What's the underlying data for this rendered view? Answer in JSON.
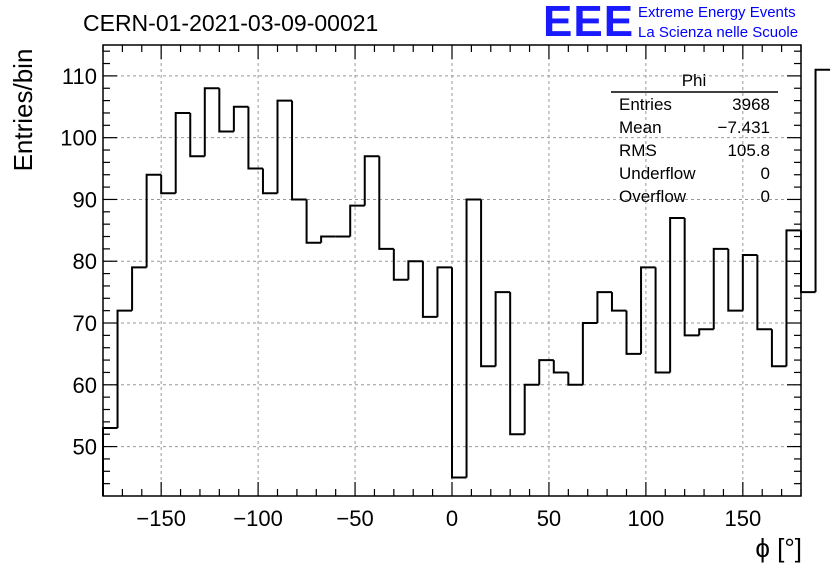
{
  "header": {
    "title": "CERN-01-2021-03-09-00021",
    "logo_text": "EEE",
    "logo_line1": "Extreme Energy Events",
    "logo_line2": "La Scienza nelle Scuole",
    "logo_color": "#1a1aff"
  },
  "stats_box": {
    "name": "Phi",
    "rows": [
      {
        "label": "Entries",
        "value": "3968"
      },
      {
        "label": "Mean",
        "value": "−7.431"
      },
      {
        "label": "RMS",
        "value": "105.8"
      },
      {
        "label": "Underflow",
        "value": "0"
      },
      {
        "label": "Overflow",
        "value": "0"
      }
    ]
  },
  "chart_data": {
    "type": "histogram",
    "xlabel": "ϕ [°]",
    "ylabel": "Entries/bin",
    "xlim": [
      -180,
      180
    ],
    "ylim": [
      42,
      115
    ],
    "bin_edges_start": -180,
    "bin_width": 7.5,
    "values": [
      53,
      72,
      79,
      94,
      91,
      104,
      97,
      108,
      101,
      105,
      95,
      91,
      106,
      90,
      83,
      84,
      84,
      89,
      97,
      82,
      77,
      80,
      71,
      79,
      45,
      90,
      63,
      75,
      52,
      60,
      64,
      62,
      60,
      70,
      75,
      72,
      65,
      79,
      62,
      87,
      68,
      69,
      82,
      72,
      81,
      69,
      63,
      85,
      75,
      111
    ],
    "x_ticks": [
      -150,
      -100,
      -50,
      0,
      50,
      100,
      150
    ],
    "x_tick_labels": [
      "−150",
      "−100",
      "−50",
      "0",
      "50",
      "100",
      "150"
    ],
    "y_ticks": [
      50,
      60,
      70,
      80,
      90,
      100,
      110
    ],
    "y_tick_labels": [
      "50",
      "60",
      "70",
      "80",
      "90",
      "100",
      "110"
    ],
    "grid": true,
    "line_color": "#000000",
    "grid_color": "#999999"
  }
}
